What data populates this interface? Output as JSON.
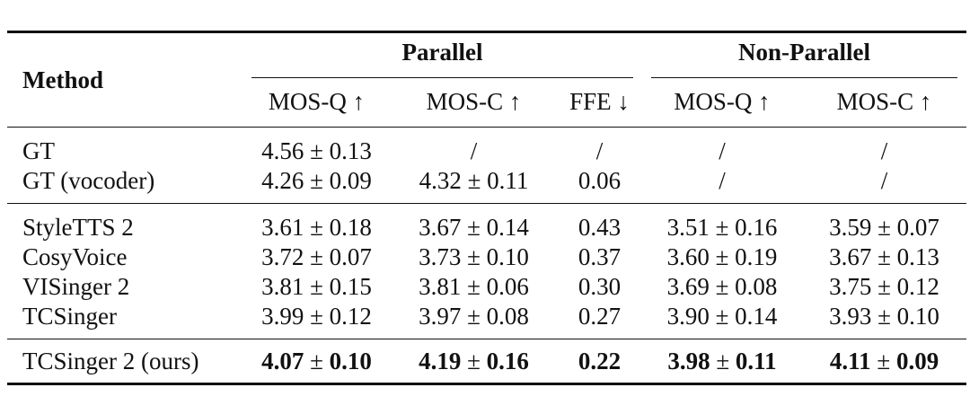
{
  "table": {
    "method_header": "Method",
    "groups": [
      {
        "label": "Parallel"
      },
      {
        "label": "Non-Parallel"
      }
    ],
    "columns": [
      "MOS-Q ↑",
      "MOS-C ↑",
      "FFE ↓",
      "MOS-Q ↑",
      "MOS-C ↑"
    ],
    "gt_rows": [
      {
        "method": "GT",
        "values": [
          "4.56 ± 0.13",
          "/",
          "/",
          "/",
          "/"
        ]
      },
      {
        "method": "GT (vocoder)",
        "values": [
          "4.26 ± 0.09",
          "4.32 ± 0.11",
          "0.06",
          "/",
          "/"
        ]
      }
    ],
    "baseline_rows": [
      {
        "method": "StyleTTS 2",
        "values": [
          "3.61 ± 0.18",
          "3.67 ± 0.14",
          "0.43",
          "3.51 ± 0.16",
          "3.59 ± 0.07"
        ]
      },
      {
        "method": "CosyVoice",
        "values": [
          "3.72 ± 0.07",
          "3.73 ± 0.10",
          "0.37",
          "3.60 ± 0.19",
          "3.67 ± 0.13"
        ]
      },
      {
        "method": "VISinger 2",
        "values": [
          "3.81 ± 0.15",
          "3.81 ± 0.06",
          "0.30",
          "3.69 ± 0.08",
          "3.75 ± 0.12"
        ]
      },
      {
        "method": "TCSinger",
        "values": [
          "3.99 ± 0.12",
          "3.97 ± 0.08",
          "0.27",
          "3.90 ± 0.14",
          "3.93 ± 0.10"
        ]
      }
    ],
    "ours_row": {
      "method": "TCSinger 2 (ours)",
      "values": [
        "4.07 ± 0.10",
        "4.19 ± 0.16",
        "0.22",
        "3.98 ± 0.11",
        "4.11 ± 0.09"
      ]
    }
  }
}
